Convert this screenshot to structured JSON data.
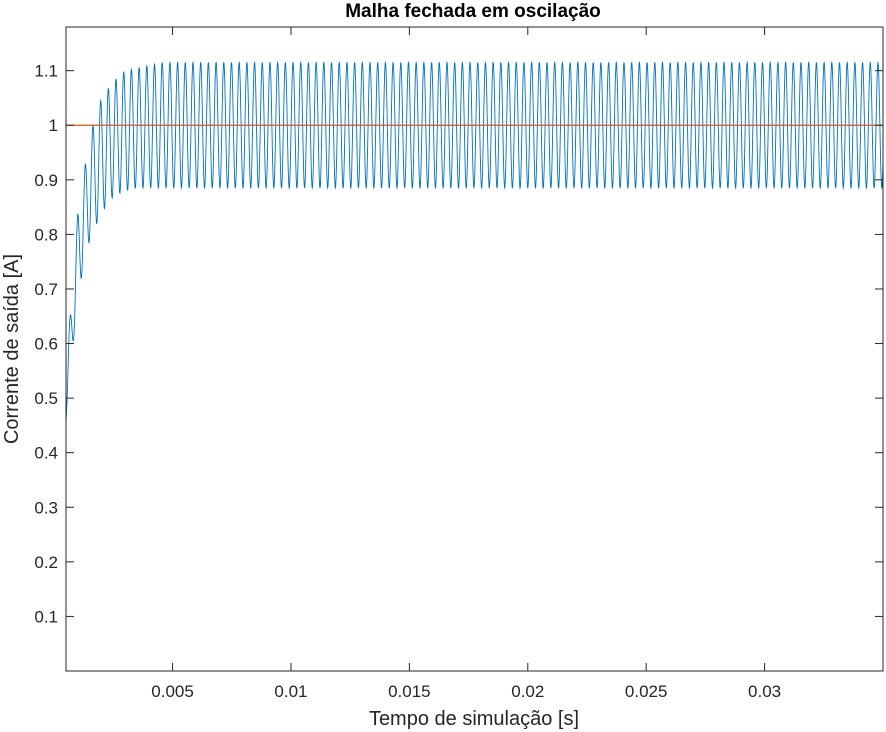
{
  "chart_data": {
    "type": "line",
    "title": "Malha fechada em oscilação",
    "xlabel": "Tempo de simulação [s]",
    "ylabel": "Corrente de saída [A]",
    "xlim": [
      0.0005,
      0.035
    ],
    "ylim": [
      0,
      1.18
    ],
    "xticks": [
      0.005,
      0.01,
      0.015,
      0.02,
      0.025,
      0.03
    ],
    "xtick_labels": [
      "0.005",
      "0.01",
      "0.015",
      "0.02",
      "0.025",
      "0.03"
    ],
    "yticks": [
      0.1,
      0.2,
      0.3,
      0.4,
      0.5,
      0.6,
      0.7,
      0.8,
      0.9,
      1,
      1.1
    ],
    "ytick_labels": [
      "0.1",
      "0.2",
      "0.3",
      "0.4",
      "0.5",
      "0.6",
      "0.7",
      "0.8",
      "0.9",
      "1",
      "1.1"
    ],
    "grid": false,
    "series": [
      {
        "color": "#0072bd",
        "style": "oscillating current",
        "oscillation_period": 0.000325,
        "mean_steady": 1.0,
        "amplitude_steady": 0.115,
        "settling_time": 0.0045,
        "points": [
          {
            "x": 0.0005,
            "min": 0.46,
            "max": 0.55
          },
          {
            "x": 0.001,
            "min": 0.69,
            "max": 0.84
          },
          {
            "x": 0.0015,
            "min": 0.79,
            "max": 0.98
          },
          {
            "x": 0.002,
            "min": 0.84,
            "max": 1.05
          },
          {
            "x": 0.0025,
            "min": 0.87,
            "max": 1.08
          },
          {
            "x": 0.003,
            "min": 0.88,
            "max": 1.1
          },
          {
            "x": 0.0035,
            "min": 0.885,
            "max": 1.105
          },
          {
            "x": 0.0045,
            "min": 0.885,
            "max": 1.115
          },
          {
            "x": 0.035,
            "min": 0.885,
            "max": 1.115
          }
        ]
      },
      {
        "color": "#d95319",
        "style": "reference",
        "points": [
          {
            "x": 0.0005,
            "y": 1
          },
          {
            "x": 0.035,
            "y": 1
          }
        ]
      }
    ]
  }
}
